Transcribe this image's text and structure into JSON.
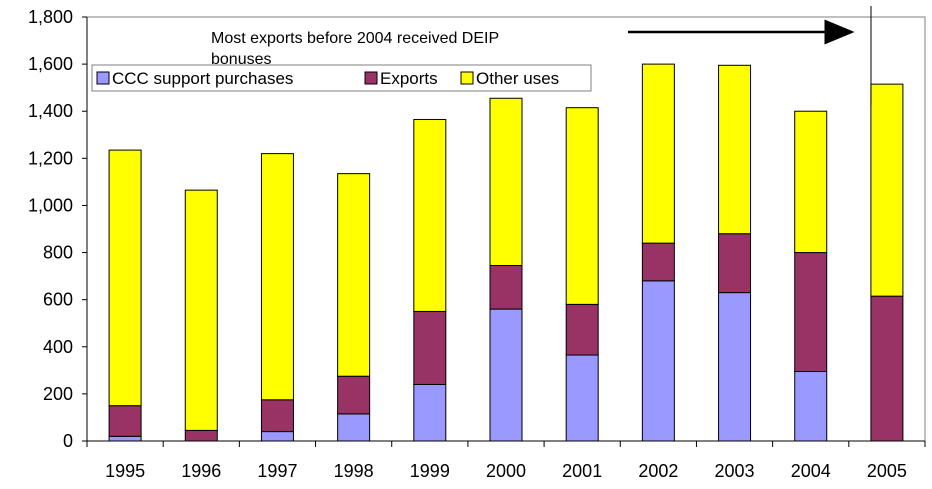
{
  "chart_data": {
    "type": "bar",
    "stacked": true,
    "categories": [
      "1995",
      "1996",
      "1997",
      "1998",
      "1999",
      "2000",
      "2001",
      "2002",
      "2003",
      "2004",
      "2005"
    ],
    "series": [
      {
        "name": "CCC support purchases",
        "color": "#9999ff",
        "values": [
          20,
          0,
          40,
          115,
          240,
          560,
          365,
          680,
          630,
          295,
          0
        ]
      },
      {
        "name": "Exports",
        "color": "#993366",
        "values": [
          130,
          45,
          135,
          160,
          310,
          185,
          215,
          160,
          250,
          505,
          615
        ]
      },
      {
        "name": "Other uses",
        "color": "#ffff00",
        "values": [
          1085,
          1020,
          1045,
          860,
          815,
          710,
          835,
          760,
          715,
          600,
          900
        ]
      }
    ],
    "y_ticks": [
      "0",
      "200",
      "400",
      "600",
      "800",
      "1,000",
      "1,200",
      "1,400",
      "1,600",
      "1,800"
    ],
    "ylim": [
      0,
      1800
    ],
    "grid": false,
    "legend_position": "top-left",
    "annotation": {
      "line1": "Most exports before 2004 received DEIP",
      "line2": "bonuses"
    }
  }
}
